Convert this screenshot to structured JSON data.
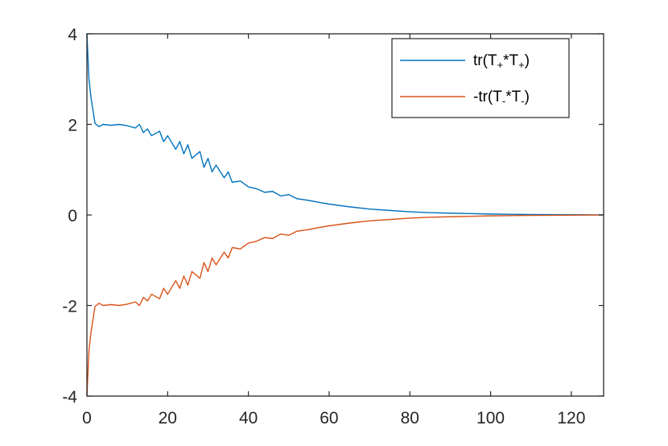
{
  "chart_data": {
    "type": "line",
    "xlim": [
      0,
      128
    ],
    "ylim": [
      -4,
      4
    ],
    "x_ticks": [
      "0",
      "20",
      "40",
      "60",
      "80",
      "100",
      "120"
    ],
    "y_ticks": [
      "4",
      "2",
      "0",
      "-2",
      "-4"
    ],
    "grid": false,
    "legend_placement": "top-right",
    "x": [
      0,
      0.5,
      1,
      2,
      3,
      4,
      6,
      8,
      10,
      12,
      13,
      14,
      15,
      16,
      18,
      19,
      20,
      22,
      23,
      24,
      25,
      26,
      28,
      29,
      30,
      31,
      32,
      34,
      35,
      36,
      38,
      40,
      42,
      44,
      46,
      48,
      50,
      52,
      55,
      58,
      60,
      65,
      70,
      75,
      80,
      85,
      90,
      95,
      100,
      105,
      110,
      115,
      120,
      125,
      128
    ],
    "series": [
      {
        "name": "tr(T+*T+)",
        "legend_main": [
          "tr(T",
          "*T",
          ")"
        ],
        "legend_sub": [
          "+",
          "+"
        ],
        "color": "#0072BD",
        "values": [
          4.0,
          3.0,
          2.6,
          2.02,
          1.95,
          2.0,
          1.98,
          2.0,
          1.97,
          1.92,
          2.0,
          1.82,
          1.9,
          1.75,
          1.85,
          1.62,
          1.75,
          1.45,
          1.62,
          1.35,
          1.55,
          1.25,
          1.4,
          1.05,
          1.25,
          0.95,
          1.1,
          0.82,
          0.95,
          0.72,
          0.75,
          0.62,
          0.58,
          0.5,
          0.52,
          0.42,
          0.45,
          0.36,
          0.32,
          0.27,
          0.24,
          0.18,
          0.13,
          0.1,
          0.07,
          0.05,
          0.04,
          0.03,
          0.02,
          0.015,
          0.01,
          0.007,
          0.005,
          0.003,
          0.002
        ]
      },
      {
        "name": "-tr(T-*T-)",
        "legend_main": [
          "-tr(T",
          "*T",
          ")"
        ],
        "legend_sub": [
          "-",
          "-"
        ],
        "color": "#D95319",
        "values": [
          -4.0,
          -3.0,
          -2.6,
          -2.02,
          -1.95,
          -2.0,
          -1.98,
          -2.0,
          -1.97,
          -1.92,
          -2.0,
          -1.82,
          -1.9,
          -1.75,
          -1.85,
          -1.62,
          -1.75,
          -1.45,
          -1.62,
          -1.35,
          -1.55,
          -1.25,
          -1.4,
          -1.05,
          -1.25,
          -0.95,
          -1.1,
          -0.82,
          -0.95,
          -0.72,
          -0.75,
          -0.62,
          -0.58,
          -0.5,
          -0.52,
          -0.42,
          -0.45,
          -0.36,
          -0.32,
          -0.27,
          -0.24,
          -0.18,
          -0.13,
          -0.1,
          -0.07,
          -0.05,
          -0.04,
          -0.03,
          -0.02,
          -0.015,
          -0.01,
          -0.007,
          -0.005,
          -0.003,
          -0.002
        ]
      }
    ]
  }
}
